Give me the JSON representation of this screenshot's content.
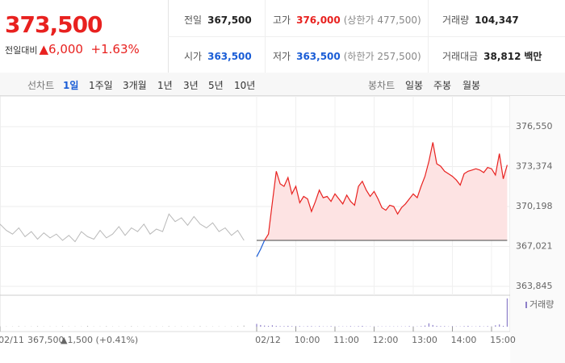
{
  "header": {
    "price": "373,500",
    "change_label": "전일대비",
    "change": "▲6,000",
    "change_pct": "+1.63%",
    "rows": [
      [
        {
          "label": "전일",
          "value": "367,500"
        },
        {
          "label": "고가",
          "value": "376,000",
          "note": "(상한가 477,500)"
        },
        {
          "label": "거래량",
          "value": "104,347"
        }
      ],
      [
        {
          "label": "시가",
          "value": "363,500"
        },
        {
          "label": "저가",
          "value": "363,500",
          "note": "(하한가 257,500)"
        },
        {
          "label": "거래대금",
          "value": "38,812",
          "note": "백만"
        }
      ]
    ]
  },
  "tabs": {
    "line_label": "선차트",
    "line": [
      "1일",
      "1주일",
      "3개월",
      "1년",
      "3년",
      "5년",
      "10년"
    ],
    "candle_label": "봉차트",
    "candle": [
      "일봉",
      "주봉",
      "월봉"
    ]
  },
  "chart_data": {
    "type": "line",
    "values": [
      368800,
      368300,
      368000,
      368500,
      367800,
      368200,
      367600,
      368100,
      367700,
      368000,
      367500,
      367900,
      367400,
      368200,
      367800,
      367600,
      368300,
      367700,
      368000,
      368600,
      367900,
      368500,
      368200,
      368800,
      368000,
      368400,
      368200,
      369600,
      369000,
      369300,
      368700,
      369400,
      368800,
      368500,
      368900,
      368200,
      368500,
      367900,
      368300,
      367500,
      366200,
      366800,
      367500,
      368000,
      370500,
      373000,
      372000,
      371800,
      372500,
      371200,
      371800,
      370500,
      371000,
      370800,
      369800,
      370600,
      371500,
      370900,
      371000,
      370600,
      371200,
      370800,
      370400,
      371100,
      370600,
      370300,
      371800,
      372200,
      371500,
      371000,
      371400,
      370800,
      370100,
      369900,
      370300,
      370200,
      369600,
      370100,
      370400,
      370800,
      371200,
      370900,
      371800,
      372600,
      373800,
      375300,
      373600,
      373400,
      373000,
      372800,
      372600,
      372300,
      371900,
      372800,
      373000,
      373100,
      373200,
      373100,
      372900,
      373300,
      373200,
      372700,
      374400,
      372400,
      373500
    ],
    "volume_name": "거래량",
    "volume": [
      2,
      1,
      1,
      2,
      1,
      1,
      2,
      1,
      1,
      1,
      2,
      1,
      1,
      1,
      3,
      1,
      1,
      2,
      1,
      1,
      1,
      2,
      1,
      1,
      1,
      1,
      1,
      2,
      1,
      1,
      1,
      1,
      2,
      1,
      1,
      1,
      1,
      1,
      2,
      4,
      10,
      6,
      4,
      3,
      5,
      3,
      2,
      2,
      3,
      2,
      2,
      2,
      1,
      2,
      2,
      1,
      2,
      1,
      1,
      2,
      1,
      1,
      1,
      1,
      2,
      1,
      2,
      3,
      1,
      1,
      1,
      1,
      1,
      1,
      1,
      1,
      1,
      1,
      1,
      2,
      1,
      1,
      2,
      4,
      12,
      6,
      3,
      2,
      2,
      1,
      2,
      1,
      1,
      2,
      3,
      1,
      1,
      2,
      1,
      2,
      1,
      5,
      8,
      3,
      100
    ],
    "base": {
      "value": 367500,
      "label": "367,500"
    },
    "base_change": "▲1,500 (+0.41%)",
    "ylim": [
      363845,
      376550
    ],
    "yticks": [
      {
        "value": 376550,
        "label": "376,550"
      },
      {
        "value": 373374,
        "label": "373,374"
      },
      {
        "value": 370198,
        "label": "370,198"
      },
      {
        "value": 367021,
        "label": "367,021"
      },
      {
        "value": 363845,
        "label": "363,845"
      }
    ],
    "xticks": [
      {
        "value": 0,
        "label": "02/11"
      },
      {
        "value": 40,
        "label": "02/12"
      },
      {
        "value": 50,
        "label": "10:00"
      },
      {
        "value": 60,
        "label": "11:00"
      },
      {
        "value": 70,
        "label": "12:00"
      },
      {
        "value": 80,
        "label": "13:00"
      },
      {
        "value": 90,
        "label": "14:00"
      },
      {
        "value": 100,
        "label": "15:00"
      }
    ],
    "grid": true,
    "colors": {
      "previous": "#b9b9b9",
      "up": "#e8211f",
      "down": "#1a5dd6",
      "fill": "#fde3e3",
      "volume_prev": "#bdbdbd",
      "volume": "#8d7fc9"
    }
  }
}
